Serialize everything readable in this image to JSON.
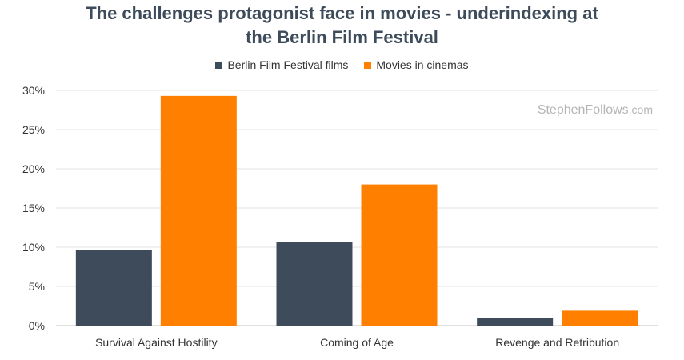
{
  "chart_data": {
    "type": "bar",
    "title_line1": "The challenges protagonist face in movies - underindexing at",
    "title_line2": "the Berlin Film Festival",
    "categories": [
      "Survival Against Hostility",
      "Coming of Age",
      "Revenge and Retribution"
    ],
    "series": [
      {
        "name": "Berlin Film Festival films",
        "color": "#3d4b5a",
        "values": [
          9.6,
          10.7,
          1.0
        ]
      },
      {
        "name": "Movies in cinemas",
        "color": "#ff7f00",
        "values": [
          29.3,
          18.0,
          1.9
        ]
      }
    ],
    "ylim": [
      0,
      30
    ],
    "yticks": [
      "0%",
      "5%",
      "10%",
      "15%",
      "20%",
      "25%",
      "30%"
    ],
    "grid": true,
    "legend_position": "top-center",
    "watermark": {
      "brand": "StephenFollows",
      "suffix": ".com"
    }
  }
}
